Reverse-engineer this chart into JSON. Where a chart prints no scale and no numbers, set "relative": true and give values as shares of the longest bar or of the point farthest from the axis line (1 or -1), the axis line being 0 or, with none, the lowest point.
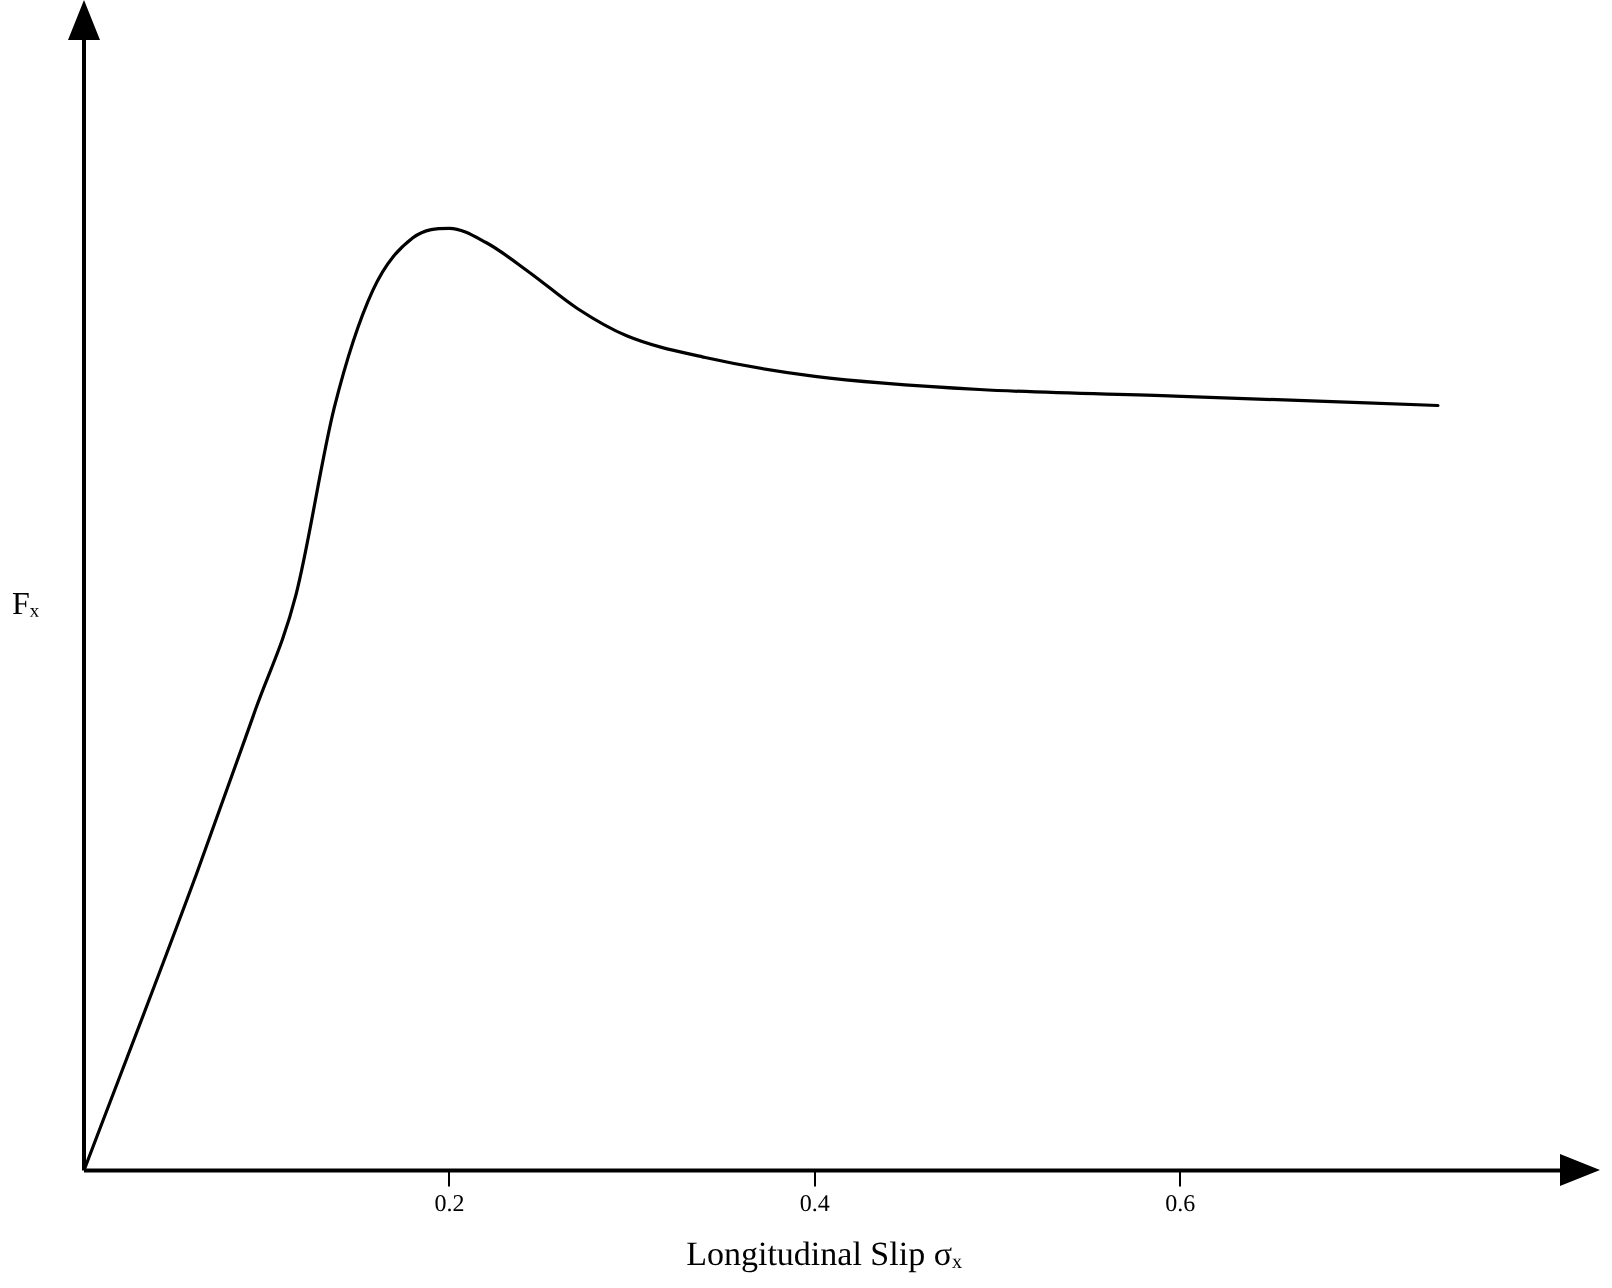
{
  "chart_data": {
    "type": "line",
    "relative": true,
    "xlabel": "Longitudinal Slip σₓ",
    "ylabel": "Fₓ",
    "x": [
      0,
      0.062,
      0.094,
      0.116,
      0.137,
      0.158,
      0.18,
      0.2,
      0.22,
      0.244,
      0.27,
      0.297,
      0.34,
      0.4,
      0.49,
      0.597,
      0.741
    ],
    "series": [
      {
        "color": "#000000",
        "values": [
          0,
          0.317,
          0.49,
          0.611,
          0.81,
          0.934,
          0.99,
          1,
          0.985,
          0.953,
          0.915,
          0.886,
          0.863,
          0.843,
          0.829,
          0.822,
          0.812
        ]
      }
    ],
    "xlim": [
      0,
      0.81
    ],
    "xticks": [
      0.2,
      0.4,
      0.6
    ],
    "grid": false,
    "legend": false,
    "marker": "none",
    "line_style": "solid"
  }
}
